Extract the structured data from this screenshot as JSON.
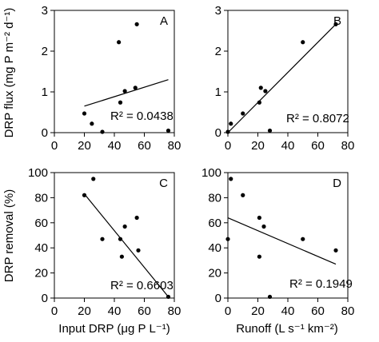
{
  "figure": {
    "ylabel_top": "DRP flux (mg P m⁻² d⁻¹)",
    "ylabel_bottom": "DRP removal (%)",
    "xlabel_left": "Input DRP (μg P L⁻¹)",
    "xlabel_right": "Runoff (L s⁻¹ km⁻²)"
  },
  "chart_data": [
    {
      "type": "scatter",
      "panel": "A",
      "r2_label": "R² = 0.0438",
      "xlim": [
        0,
        80
      ],
      "ylim": [
        0,
        3
      ],
      "xticks": [
        0,
        20,
        40,
        60,
        80
      ],
      "yticks": [
        0,
        1,
        2,
        3
      ],
      "x": [
        20,
        25,
        32,
        43,
        44,
        47,
        54,
        55,
        76
      ],
      "y": [
        0.47,
        0.22,
        0.02,
        2.22,
        0.74,
        1.02,
        1.1,
        2.66,
        0.05
      ],
      "fit": {
        "x": [
          20,
          76
        ],
        "y": [
          0.65,
          1.3
        ]
      }
    },
    {
      "type": "scatter",
      "panel": "B",
      "r2_label": "R² = 0.8072",
      "xlim": [
        0,
        80
      ],
      "ylim": [
        0,
        3
      ],
      "xticks": [
        0,
        20,
        40,
        60,
        80
      ],
      "yticks": [
        0,
        1,
        2,
        3
      ],
      "x": [
        0,
        2,
        10,
        21,
        22,
        25,
        28,
        50,
        72
      ],
      "y": [
        0.02,
        0.22,
        0.47,
        0.74,
        1.1,
        1.02,
        0.05,
        2.22,
        2.66
      ],
      "fit": {
        "x": [
          0,
          72
        ],
        "y": [
          0.0,
          2.66
        ]
      }
    },
    {
      "type": "scatter",
      "panel": "C",
      "r2_label": "R² = 0.6603",
      "xlim": [
        0,
        80
      ],
      "ylim": [
        0,
        100
      ],
      "xticks": [
        0,
        20,
        40,
        60,
        80
      ],
      "yticks": [
        0,
        20,
        40,
        60,
        80,
        100
      ],
      "x": [
        20,
        26,
        32,
        44,
        45,
        47,
        55,
        56,
        76
      ],
      "y": [
        82,
        95,
        47,
        47,
        33,
        57,
        64,
        38,
        1
      ],
      "fit": {
        "x": [
          20,
          76
        ],
        "y": [
          83,
          1
        ]
      }
    },
    {
      "type": "scatter",
      "panel": "D",
      "r2_label": "R² = 0.1949",
      "xlim": [
        0,
        80
      ],
      "ylim": [
        0,
        100
      ],
      "xticks": [
        0,
        20,
        40,
        60,
        80
      ],
      "yticks": [
        0,
        20,
        40,
        60,
        80,
        100
      ],
      "x": [
        0,
        2,
        10,
        21,
        21,
        24,
        28,
        50,
        72
      ],
      "y": [
        47,
        95,
        82,
        64,
        33,
        57,
        1,
        47,
        38
      ],
      "fit": {
        "x": [
          0,
          72
        ],
        "y": [
          64,
          27
        ]
      }
    }
  ]
}
